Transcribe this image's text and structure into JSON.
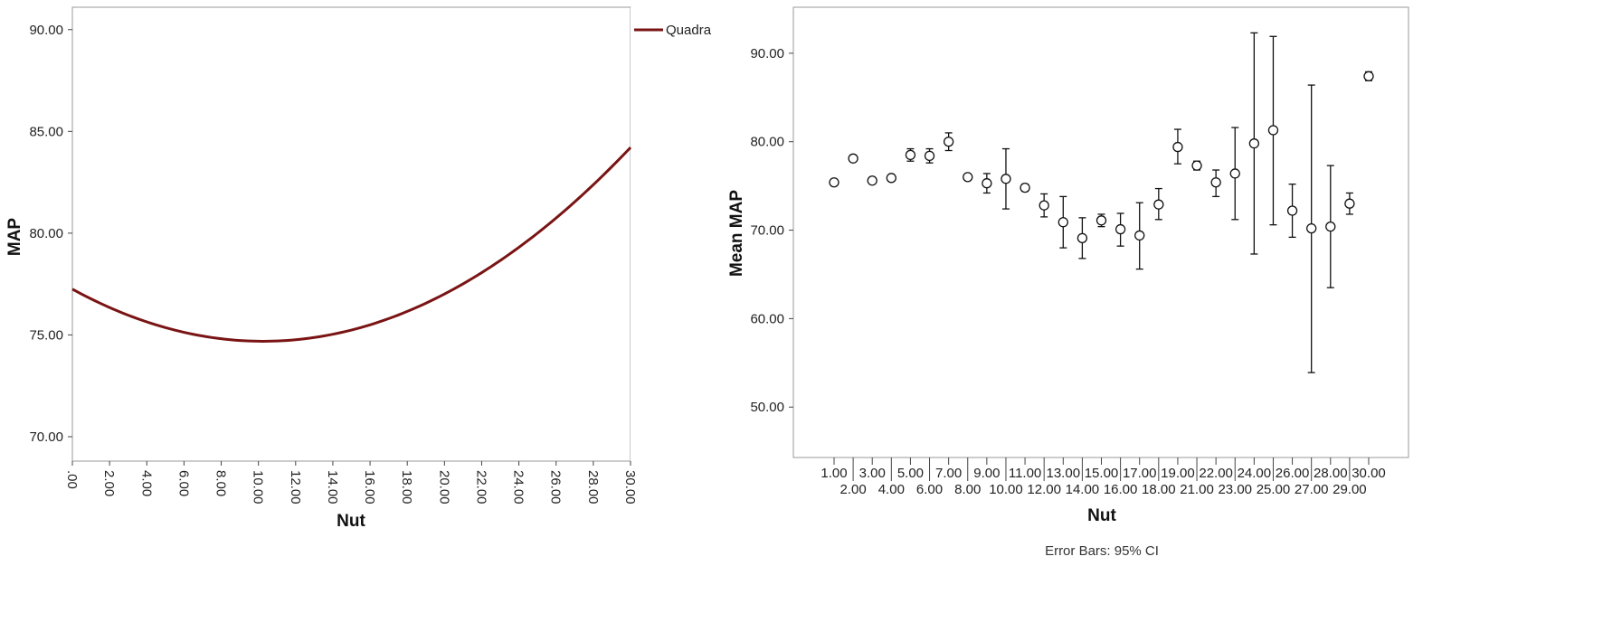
{
  "chart_data": [
    {
      "type": "line",
      "fit": "quadratic",
      "xlabel": "Nut",
      "ylabel": "MAP",
      "xlim": [
        0,
        30
      ],
      "ylim": [
        68.8,
        91.1
      ],
      "x_ticks": [
        ".00",
        "2.00",
        "4.00",
        "6.00",
        "8.00",
        "10.00",
        "12.00",
        "14.00",
        "16.00",
        "18.00",
        "20.00",
        "22.00",
        "24.00",
        "26.00",
        "28.00",
        "30.00"
      ],
      "y_ticks": [
        "70.00",
        "75.00",
        "80.00",
        "85.00",
        "90.00"
      ],
      "coefficients": {
        "a": 77.25,
        "b": -0.5,
        "c": 0.0244
      },
      "series": [
        {
          "name": "Quadra",
          "color": "#7a1414",
          "x": [
            0,
            2,
            4,
            6,
            8,
            10,
            12,
            14,
            16,
            18,
            20,
            22,
            24,
            26,
            28,
            30
          ],
          "y": [
            77.25,
            76.35,
            75.64,
            75.13,
            74.81,
            74.69,
            74.76,
            75.03,
            75.5,
            76.16,
            77.01,
            78.06,
            79.3,
            80.74,
            82.38,
            84.21
          ]
        }
      ],
      "grid": false,
      "legend": "top-right"
    },
    {
      "type": "errorbar",
      "xlabel": "Nut",
      "ylabel": "Mean MAP",
      "footnote": "Error Bars: 95% CI",
      "ylim": [
        44.3,
        95.2
      ],
      "y_ticks": [
        "50.00",
        "60.00",
        "70.00",
        "80.00",
        "90.00"
      ],
      "categories": [
        "1.00",
        "2.00",
        "3.00",
        "4.00",
        "5.00",
        "6.00",
        "7.00",
        "8.00",
        "9.00",
        "10.00",
        "11.00",
        "12.00",
        "13.00",
        "14.00",
        "15.00",
        "16.00",
        "17.00",
        "18.00",
        "19.00",
        "21.00",
        "22.00",
        "23.00",
        "24.00",
        "25.00",
        "26.00",
        "27.00",
        "28.00",
        "29.00",
        "30.00"
      ],
      "means": [
        75.4,
        78.1,
        75.6,
        75.9,
        78.5,
        78.4,
        80.0,
        76.0,
        75.3,
        75.8,
        74.8,
        72.8,
        70.9,
        69.1,
        71.1,
        70.1,
        69.4,
        72.9,
        79.4,
        77.3,
        75.4,
        76.4,
        79.8,
        81.3,
        72.2,
        70.2,
        70.4,
        73.0,
        87.4
      ],
      "lower": [
        75.2,
        77.8,
        75.4,
        75.6,
        77.8,
        77.6,
        79.0,
        75.7,
        74.2,
        72.4,
        74.4,
        71.5,
        68.0,
        66.8,
        70.4,
        68.2,
        65.6,
        71.2,
        77.5,
        76.8,
        73.8,
        71.2,
        67.3,
        70.6,
        69.2,
        53.9,
        63.5,
        71.8,
        86.9
      ],
      "upper": [
        75.6,
        78.4,
        75.8,
        76.2,
        79.2,
        79.2,
        81.0,
        76.3,
        76.4,
        79.2,
        75.2,
        74.1,
        73.8,
        71.4,
        71.8,
        71.9,
        73.1,
        74.7,
        81.4,
        77.8,
        76.8,
        81.6,
        92.3,
        91.9,
        75.2,
        86.4,
        77.3,
        74.2,
        87.9
      ],
      "grid": false
    }
  ]
}
